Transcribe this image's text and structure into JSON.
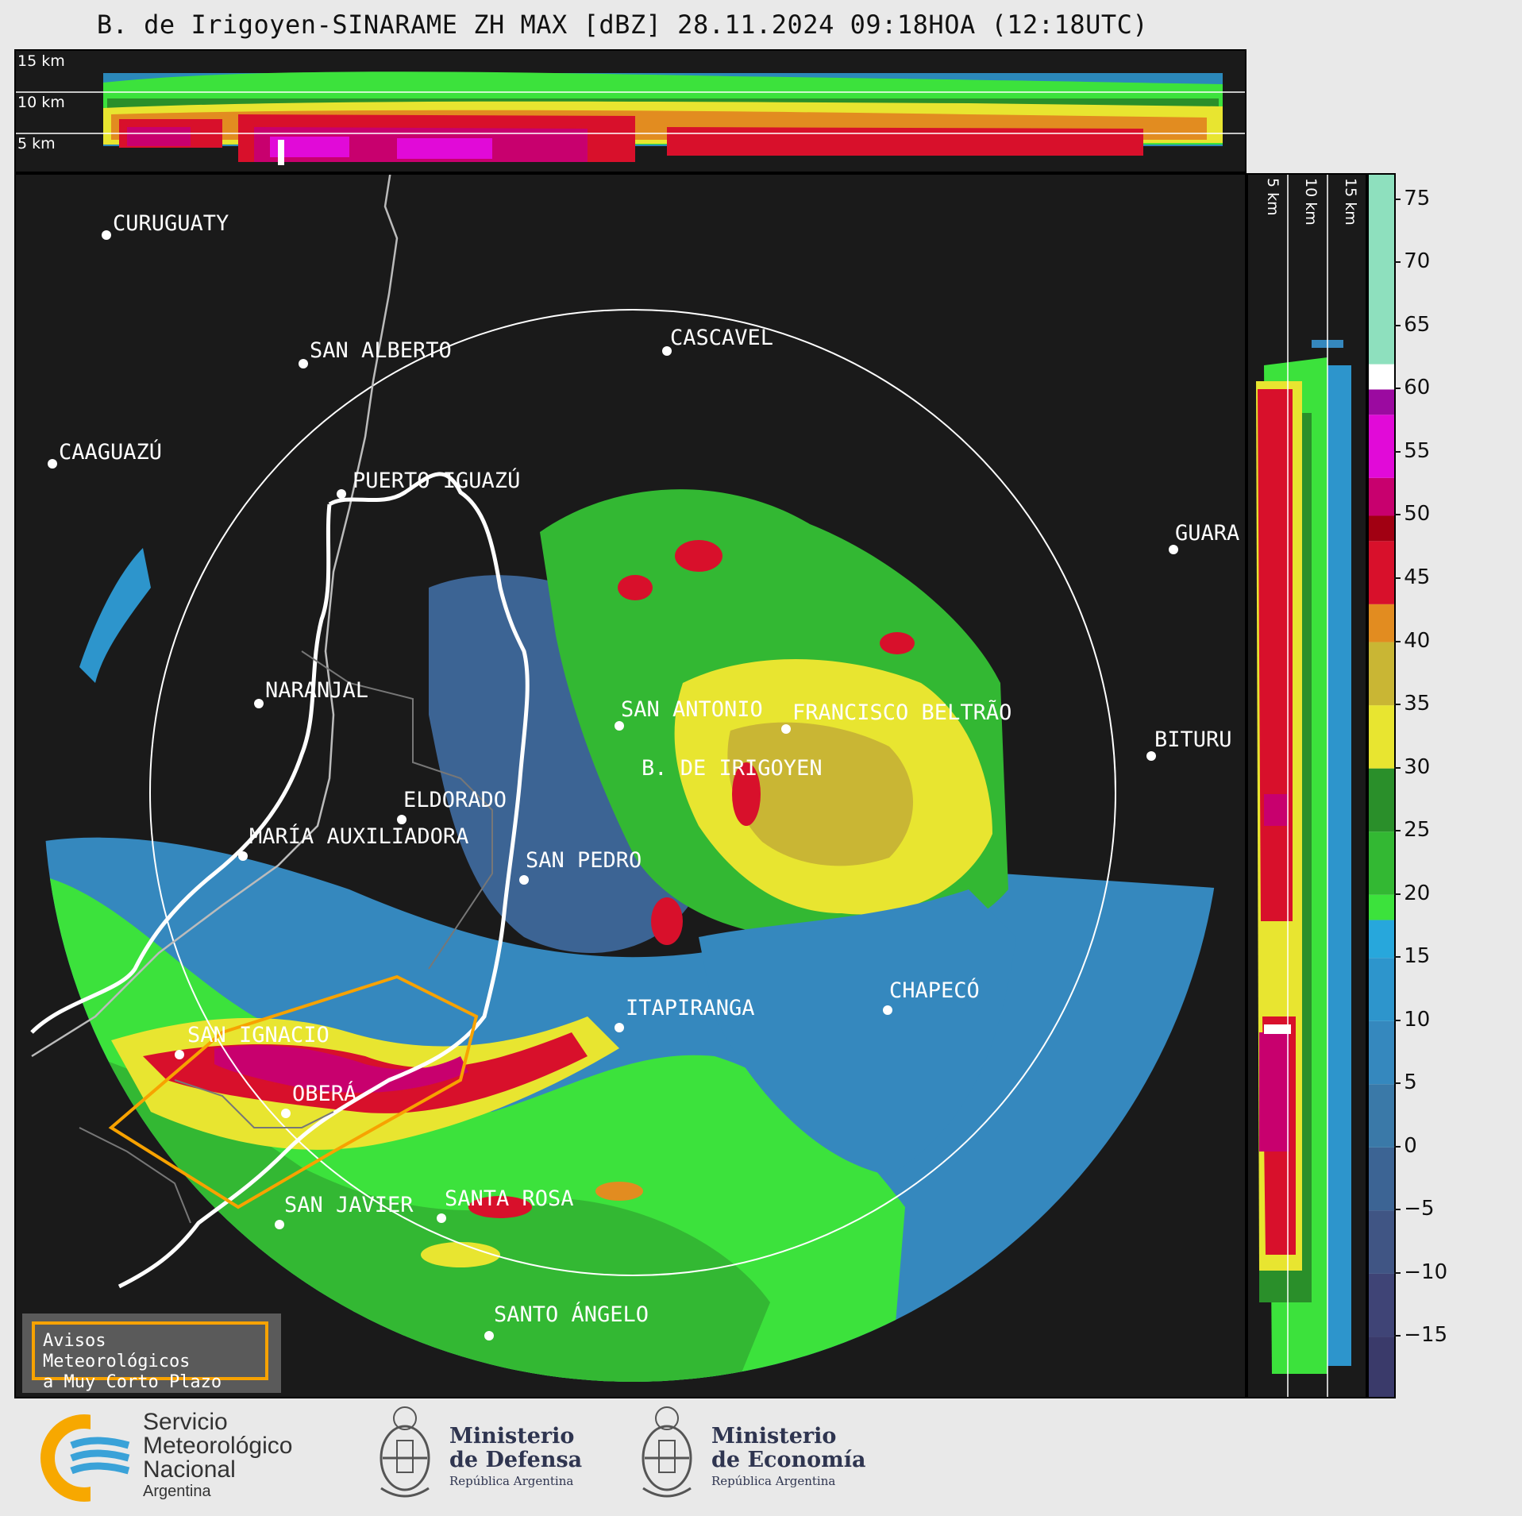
{
  "title": "B. de Irigoyen-SINARAME ZH MAX [dBZ] 28.11.2024 09:18HOA (12:18UTC)",
  "top_panel": {
    "height_labels": [
      "15 km",
      "10 km",
      "5 km"
    ]
  },
  "side_panel": {
    "height_labels": [
      "5 km",
      "10 km",
      "15 km"
    ]
  },
  "colorbar": {
    "ticks": [
      "75",
      "70",
      "65",
      "60",
      "55",
      "50",
      "45",
      "40",
      "35",
      "30",
      "25",
      "20",
      "15",
      "10",
      "5",
      "0",
      "−5",
      "−10",
      "−15"
    ],
    "range": [
      -20,
      77
    ],
    "stops": [
      {
        "from": -20,
        "to": -15,
        "color": "#3a3a6a"
      },
      {
        "from": -15,
        "to": -10,
        "color": "#3f4476"
      },
      {
        "from": -10,
        "to": -5,
        "color": "#405584"
      },
      {
        "from": -5,
        "to": 0,
        "color": "#3c6494"
      },
      {
        "from": 0,
        "to": 5,
        "color": "#3a79a8"
      },
      {
        "from": 5,
        "to": 10,
        "color": "#3588be"
      },
      {
        "from": 10,
        "to": 15,
        "color": "#2d95cc"
      },
      {
        "from": 15,
        "to": 18,
        "color": "#27a7dc"
      },
      {
        "from": 18,
        "to": 20,
        "color": "#3ce23c"
      },
      {
        "from": 20,
        "to": 25,
        "color": "#33b833"
      },
      {
        "from": 25,
        "to": 30,
        "color": "#2a8f2a"
      },
      {
        "from": 30,
        "to": 35,
        "color": "#e8e530"
      },
      {
        "from": 35,
        "to": 40,
        "color": "#c9b634"
      },
      {
        "from": 40,
        "to": 43,
        "color": "#e28c20"
      },
      {
        "from": 43,
        "to": 48,
        "color": "#d8102b"
      },
      {
        "from": 48,
        "to": 50,
        "color": "#a10012"
      },
      {
        "from": 50,
        "to": 53,
        "color": "#c8006e"
      },
      {
        "from": 53,
        "to": 58,
        "color": "#e10ad8"
      },
      {
        "from": 58,
        "to": 60,
        "color": "#9b0aa0"
      },
      {
        "from": 60,
        "to": 62,
        "color": "#ffffff"
      },
      {
        "from": 62,
        "to": 77,
        "color": "#8ee0be"
      }
    ]
  },
  "cities": [
    {
      "name": "CURUGUATY"
    },
    {
      "name": "SAN ALBERTO"
    },
    {
      "name": "CASCAVEL"
    },
    {
      "name": "CAAGUAZÚ"
    },
    {
      "name": "GUARA"
    },
    {
      "name": "PUERTO IGUAZÚ"
    },
    {
      "name": "NARANJAL"
    },
    {
      "name": "SAN ANTONIO"
    },
    {
      "name": "FRANCISCO BELTRÃO"
    },
    {
      "name": "BITURU"
    },
    {
      "name": "B. DE IRIGOYEN"
    },
    {
      "name": "ELDORADO"
    },
    {
      "name": "MARÍA AUXILIADORA"
    },
    {
      "name": "SAN PEDRO"
    },
    {
      "name": "CHAPECÓ"
    },
    {
      "name": "ITAPIRANGA"
    },
    {
      "name": "SAN IGNACIO"
    },
    {
      "name": "OBERÁ"
    },
    {
      "name": "SAN JAVIER"
    },
    {
      "name": "SANTA ROSA"
    },
    {
      "name": "SANTO ÁNGELO"
    }
  ],
  "warning_box": {
    "line1": "Avisos Meteorológicos",
    "line2": "a Muy Corto Plazo"
  },
  "footer": {
    "smn": {
      "line1": "Servicio",
      "line2": "Meteorológico",
      "line3": "Nacional",
      "line4": "Argentina"
    },
    "defensa": {
      "line1": "Ministerio",
      "line2": "de Defensa",
      "line3": "República Argentina"
    },
    "economia": {
      "line1": "Ministerio",
      "line2": "de Economía",
      "line3": "República Argentina"
    }
  }
}
